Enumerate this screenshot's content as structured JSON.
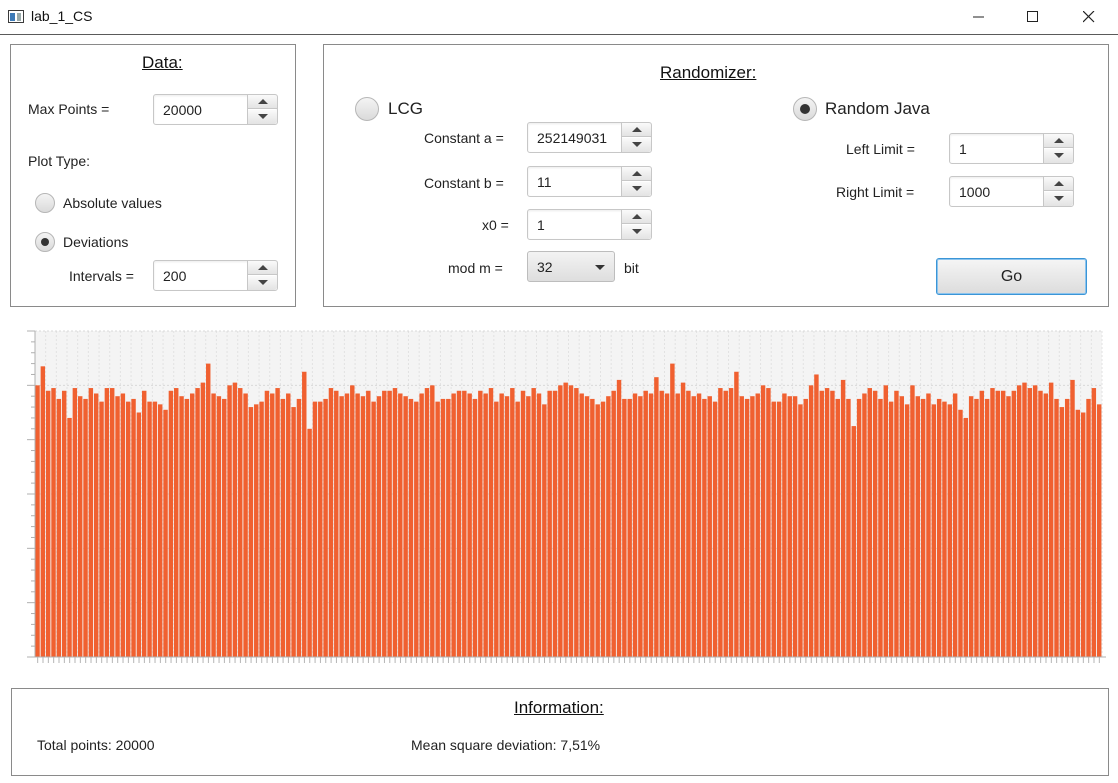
{
  "window": {
    "title": "lab_1_CS",
    "icon": "java-app-icon"
  },
  "data_panel": {
    "title": "Data:",
    "max_points_label": "Max Points =",
    "max_points_value": "20000",
    "plot_type_label": "Plot Type:",
    "absolute_label": "Absolute values",
    "deviations_label": "Deviations",
    "selected_plot_type": "Deviations",
    "intervals_label": "Intervals =",
    "intervals_value": "200"
  },
  "randomizer_panel": {
    "title": "Randomizer:",
    "lcg_label": "LCG",
    "constant_a_label": "Constant a =",
    "constant_a_value": "252149031",
    "constant_b_label": "Constant b =",
    "constant_b_value": "11",
    "x0_label": "x0 =",
    "x0_value": "1",
    "mod_label": "mod m =",
    "mod_value": "32",
    "bit_label": "bit",
    "random_java_label": "Random Java",
    "selected_generator": "Random Java",
    "left_limit_label": "Left Limit =",
    "left_limit_value": "1",
    "right_limit_label": "Right Limit =",
    "right_limit_value": "1000",
    "go_label": "Go"
  },
  "info_panel": {
    "title": "Information:",
    "total_points": "Total points: 20000",
    "mean_square_deviation": "Mean square deviation: 7,51%"
  },
  "chart_data": {
    "type": "bar",
    "intervals": 200,
    "bar_color": "#f06030",
    "grid": true,
    "ylim": [
      0,
      120
    ],
    "values": [
      100,
      107,
      98,
      99,
      95,
      98,
      88,
      99,
      96,
      95,
      99,
      97,
      94,
      99,
      99,
      96,
      97,
      94,
      95,
      90,
      98,
      94,
      94,
      93,
      91,
      98,
      99,
      96,
      95,
      97,
      99,
      101,
      108,
      97,
      96,
      95,
      100,
      101,
      99,
      97,
      92,
      93,
      94,
      98,
      97,
      99,
      95,
      97,
      92,
      95,
      105,
      84,
      94,
      94,
      95,
      99,
      98,
      96,
      97,
      100,
      97,
      96,
      98,
      94,
      96,
      98,
      98,
      99,
      97,
      96,
      95,
      94,
      97,
      99,
      100,
      94,
      95,
      95,
      97,
      98,
      98,
      97,
      95,
      98,
      97,
      99,
      94,
      97,
      96,
      99,
      94,
      98,
      96,
      99,
      97,
      93,
      98,
      98,
      100,
      101,
      100,
      99,
      97,
      96,
      95,
      93,
      94,
      96,
      98,
      102,
      95,
      95,
      97,
      96,
      98,
      97,
      103,
      98,
      97,
      108,
      97,
      101,
      98,
      96,
      97,
      95,
      96,
      94,
      99,
      98,
      99,
      105,
      96,
      95,
      96,
      97,
      100,
      99,
      94,
      94,
      97,
      96,
      96,
      93,
      95,
      100,
      104,
      98,
      99,
      98,
      95,
      102,
      95,
      85,
      95,
      97,
      99,
      98,
      95,
      100,
      94,
      98,
      96,
      93,
      100,
      96,
      95,
      97,
      93,
      95,
      94,
      93,
      97,
      91,
      88,
      96,
      95,
      98,
      95,
      99,
      98,
      98,
      96,
      98,
      100,
      101,
      99,
      100,
      98,
      97,
      101,
      95,
      92,
      95,
      102,
      91,
      90,
      95,
      99,
      93
    ]
  },
  "icons": {
    "minimize": "minimize-icon",
    "maximize": "maximize-icon",
    "close": "close-icon",
    "spin_up": "chevron-up-icon",
    "spin_down": "chevron-down-icon",
    "dropdown": "chevron-down-icon"
  }
}
